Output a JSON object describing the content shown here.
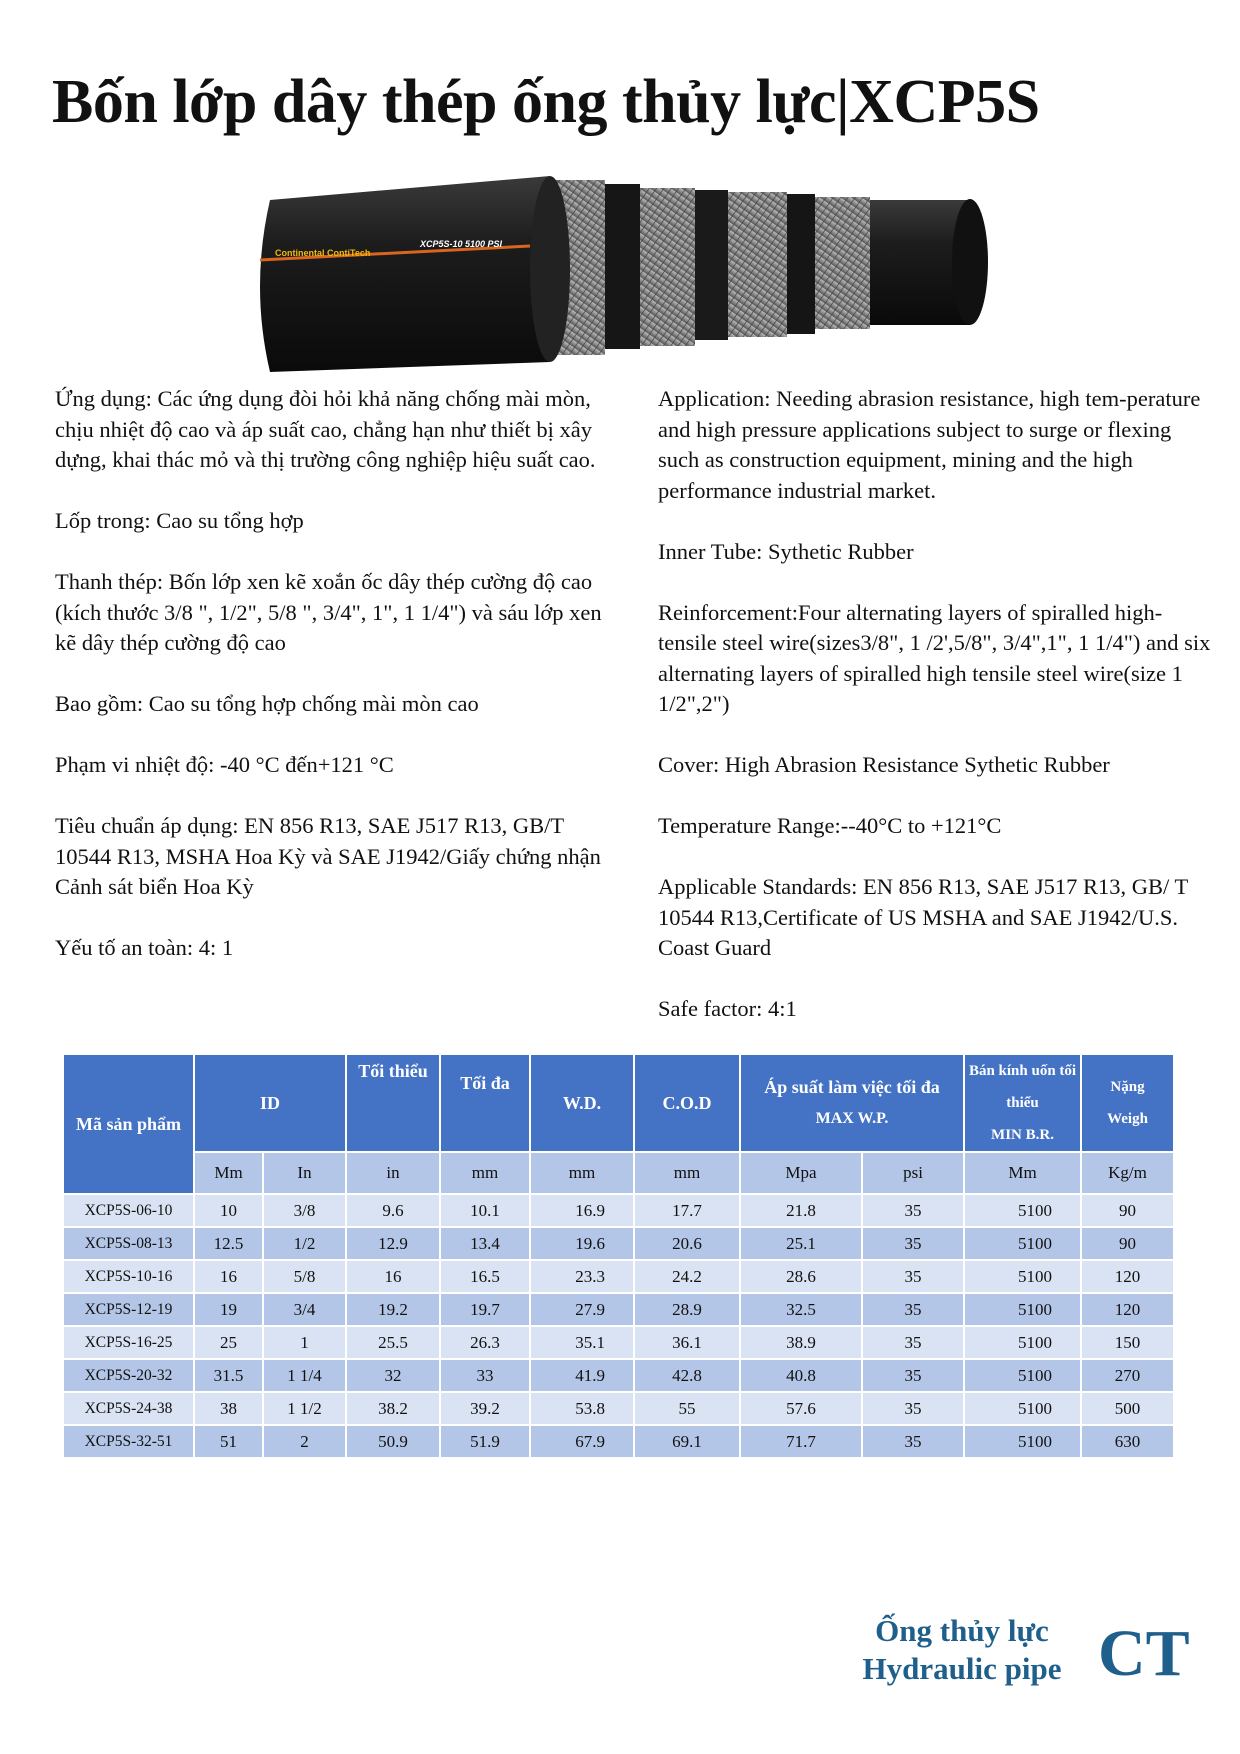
{
  "title": "Bốn lớp dây thép ống thủy lực|XCP5S",
  "hose_image": {
    "print_text": "Continental ContiTech XCP5S-10 5100 PSI"
  },
  "vi": [
    "Ứng dụng: Các ứng dụng đòi hỏi khả năng chống mài mòn, chịu nhiệt độ cao và áp suất cao, chẳng hạn như thiết bị xây dựng, khai thác mỏ và thị trường công nghiệp hiệu suất cao.",
    "Lốp trong: Cao su tổng hợp",
    "Thanh thép: Bốn lớp xen kẽ xoắn ốc dây thép cường độ cao (kích thước 3/8 \", 1/2\", 5/8 \", 3/4\", 1\", 1 1/4\") và sáu lớp xen kẽ dây thép cường độ cao",
    "Bao gồm: Cao su tổng hợp chống mài mòn cao",
    "Phạm vi nhiệt độ: -40 °C đến+121 °C",
    "Tiêu chuẩn áp dụng: EN 856 R13, SAE J517 R13, GB/T 10544 R13, MSHA Hoa Kỳ và SAE J1942/Giấy chứng nhận Cảnh sát biển Hoa Kỳ",
    "Yếu tố an toàn: 4: 1"
  ],
  "en": [
    "Application: Needing abrasion resistance, high tem-perature and high pressure applications subject to surge or flexing such as construction equipment, mining and the high performance industrial market.",
    "Inner Tube: Sythetic Rubber",
    "Reinforcement:Four alternating layers of spiralled high- tensile steel wire(sizes3/8\", 1 /2',5/8\", 3/4\",1\", 1 1/4\") and six alternating layers of spiralled high tensile steel wire(size 1 1/2\",2\")",
    "Cover: High Abrasion Resistance Sythetic Rubber",
    "Temperature Range:--40°C to +121°C",
    "Applicable Standards: EN 856 R13, SAE J517 R13, GB/ T 10544 R13,Certificate of US MSHA and SAE J1942/U.S. Coast Guard",
    "Safe factor: 4:1"
  ],
  "table": {
    "headers": {
      "code": "Mã sản phẩm",
      "id": "ID",
      "min": "Tối thiểu",
      "max": "Tối đa",
      "wd": "W.D.",
      "cod": "C.O.D",
      "wp_1": "Áp suất làm việc tối đa",
      "wp_2": "MAX W.P.",
      "br_1": "Bán kính uốn tối thiểu",
      "br_2": "MIN B.R.",
      "wt_1": "Nặng",
      "wt_2": "Weigh"
    },
    "units": [
      "Mm",
      "In",
      "in",
      "mm",
      "mm",
      "mm",
      "Mpa",
      "psi",
      "Mm",
      "Kg/m"
    ],
    "rows": [
      [
        "XCP5S-06-10",
        "10",
        "3/8",
        "9.6",
        "10.1",
        "16.9",
        "17.7",
        "21.8",
        "35",
        "5100",
        "90"
      ],
      [
        "XCP5S-08-13",
        "12.5",
        "1/2",
        "12.9",
        "13.4",
        "19.6",
        "20.6",
        "25.1",
        "35",
        "5100",
        "90"
      ],
      [
        "XCP5S-10-16",
        "16",
        "5/8",
        "16",
        "16.5",
        "23.3",
        "24.2",
        "28.6",
        "35",
        "5100",
        "120"
      ],
      [
        "XCP5S-12-19",
        "19",
        "3/4",
        "19.2",
        "19.7",
        "27.9",
        "28.9",
        "32.5",
        "35",
        "5100",
        "120"
      ],
      [
        "XCP5S-16-25",
        "25",
        "1",
        "25.5",
        "26.3",
        "35.1",
        "36.1",
        "38.9",
        "35",
        "5100",
        "150"
      ],
      [
        "XCP5S-20-32",
        "31.5",
        "1 1/4",
        "32",
        "33",
        "41.9",
        "42.8",
        "40.8",
        "35",
        "5100",
        "270"
      ],
      [
        "XCP5S-24-38",
        "38",
        "1 1/2",
        "38.2",
        "39.2",
        "53.8",
        "55",
        "57.6",
        "35",
        "5100",
        "500"
      ],
      [
        "XCP5S-32-51",
        "51",
        "2",
        "50.9",
        "51.9",
        "67.9",
        "69.1",
        "71.7",
        "35",
        "5100",
        "630"
      ]
    ]
  },
  "footer": {
    "line1": "Ống thủy lực",
    "line2": "Hydraulic pipe",
    "logo": "CT"
  },
  "colors": {
    "header": "#4472c4",
    "subheader": "#b4c6e7",
    "row_light": "#dae3f3",
    "row_dark": "#b4c6e7",
    "brand": "#1f5f8b"
  }
}
